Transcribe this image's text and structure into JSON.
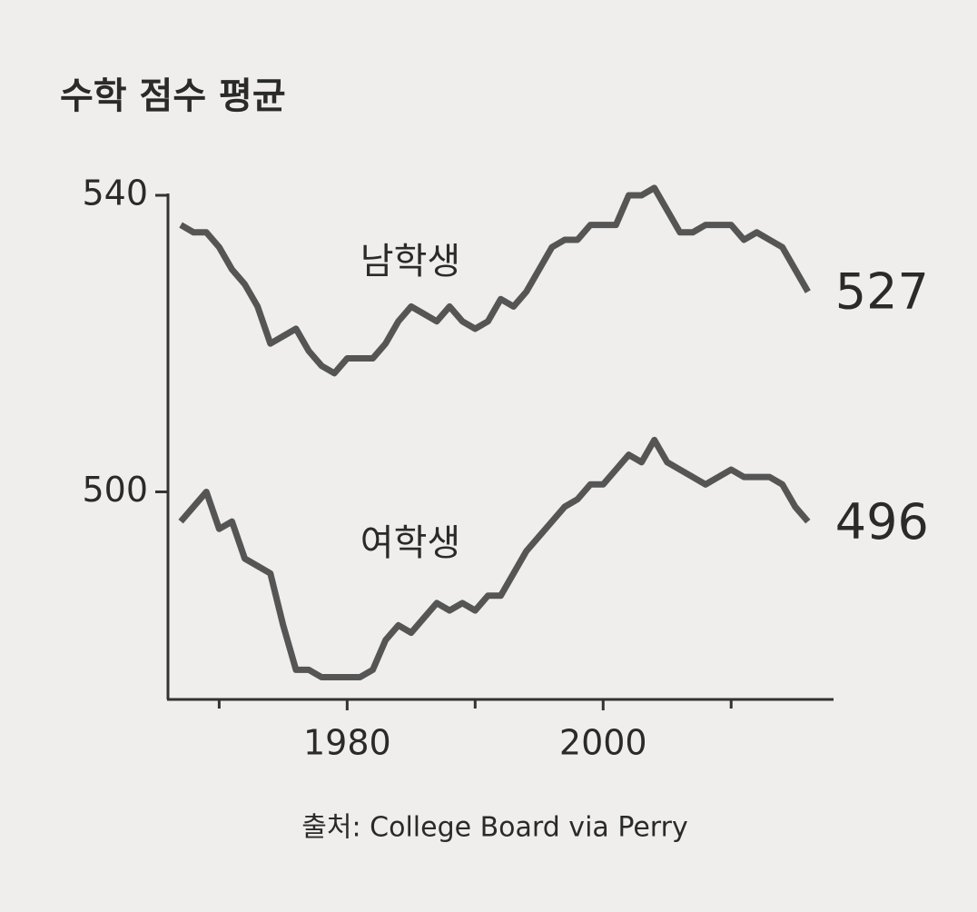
{
  "chart_data": {
    "type": "line",
    "title": "수학 점수 평균",
    "source": "출처: College Board via Perry",
    "x": [
      1967,
      1968,
      1969,
      1970,
      1971,
      1972,
      1973,
      1974,
      1975,
      1976,
      1977,
      1978,
      1979,
      1980,
      1981,
      1982,
      1983,
      1984,
      1985,
      1986,
      1987,
      1988,
      1989,
      1990,
      1991,
      1992,
      1993,
      1994,
      1995,
      1996,
      1997,
      1998,
      1999,
      2000,
      2001,
      2002,
      2003,
      2004,
      2005,
      2006,
      2007,
      2008,
      2009,
      2010,
      2011,
      2012,
      2013,
      2014,
      2015,
      2016
    ],
    "series": [
      {
        "name": "남학생",
        "color": "#555555",
        "values": [
          536,
          535,
          535,
          533,
          530,
          528,
          525,
          520,
          521,
          522,
          519,
          517,
          516,
          518,
          518,
          518,
          520,
          523,
          525,
          524,
          523,
          525,
          523,
          522,
          523,
          526,
          525,
          527,
          530,
          533,
          534,
          534,
          536,
          536,
          536,
          540,
          540,
          541,
          538,
          535,
          535,
          536,
          536,
          536,
          534,
          535,
          534,
          533,
          530,
          527
        ]
      },
      {
        "name": "여학생",
        "color": "#555555",
        "values": [
          496,
          498,
          500,
          495,
          496,
          491,
          490,
          489,
          482,
          476,
          476,
          475,
          475,
          475,
          475,
          476,
          480,
          482,
          481,
          483,
          485,
          484,
          485,
          484,
          486,
          486,
          489,
          492,
          494,
          496,
          498,
          499,
          501,
          501,
          503,
          505,
          504,
          507,
          504,
          503,
          502,
          501,
          502,
          503,
          502,
          502,
          502,
          501,
          498,
          496
        ]
      }
    ],
    "xlim": [
      1966,
      2018
    ],
    "xticks": [
      1980,
      2000
    ],
    "xminorticks": [
      1970,
      1990,
      2010
    ],
    "ylim": [
      472,
      540
    ],
    "yticks": [
      500,
      540
    ]
  }
}
